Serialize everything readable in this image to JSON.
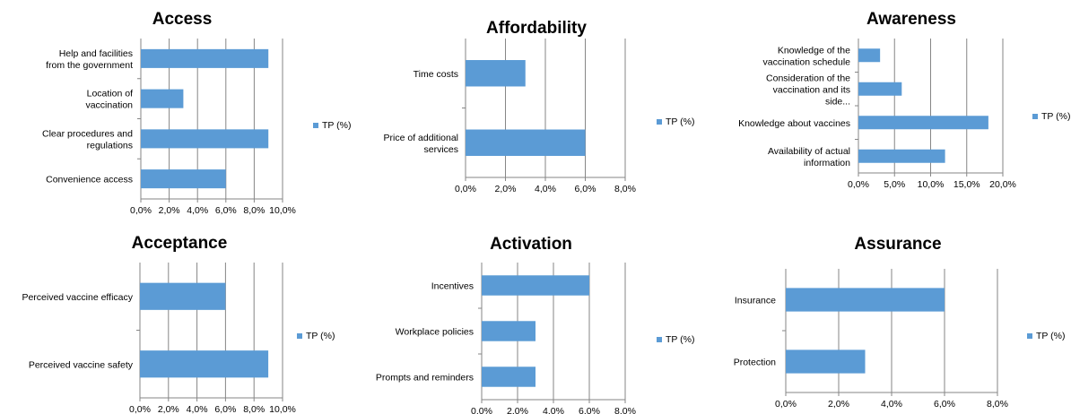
{
  "colors": {
    "bar": "#5b9bd5",
    "grid": "#868686",
    "axis": "#868686"
  },
  "chart_data": [
    {
      "type": "bar",
      "orientation": "horizontal",
      "title": "Access",
      "categories": [
        "Help and facilities from the government",
        "Location of vaccination",
        "Clear procedures and regulations",
        "Convenience access"
      ],
      "series": [
        {
          "name": "TP (%)",
          "values": [
            9.0,
            3.0,
            9.0,
            6.0
          ]
        }
      ],
      "xlim": [
        0,
        10
      ],
      "x_ticks": [
        "0,0%",
        "2,0%",
        "4,0%",
        "6,0%",
        "8,0%",
        "10,0%"
      ],
      "grid": true,
      "legend": "right"
    },
    {
      "type": "bar",
      "orientation": "horizontal",
      "title": "Affordability",
      "categories": [
        "Time costs",
        "Price of additional services"
      ],
      "series": [
        {
          "name": "TP (%)",
          "values": [
            3.0,
            6.0
          ]
        }
      ],
      "xlim": [
        0,
        8
      ],
      "x_ticks": [
        "0,0%",
        "2,0%",
        "4,0%",
        "6,0%",
        "8,0%"
      ],
      "grid": true,
      "legend": "right"
    },
    {
      "type": "bar",
      "orientation": "horizontal",
      "title": "Awareness",
      "categories": [
        "Knowledge of the vaccination schedule",
        "Consideration of the vaccination and its side...",
        "Knowledge about vaccines",
        "Availability of actual information"
      ],
      "series": [
        {
          "name": "TP (%)",
          "values": [
            3.0,
            6.0,
            18.0,
            12.0
          ]
        }
      ],
      "xlim": [
        0,
        20
      ],
      "x_ticks": [
        "0,0%",
        "5,0%",
        "10,0%",
        "15,0%",
        "20,0%"
      ],
      "grid": true,
      "legend": "right"
    },
    {
      "type": "bar",
      "orientation": "horizontal",
      "title": "Acceptance",
      "categories": [
        "Perceived vaccine efficacy",
        "Perceived vaccine safety"
      ],
      "series": [
        {
          "name": "TP (%)",
          "values": [
            6.0,
            9.0
          ]
        }
      ],
      "xlim": [
        0,
        10
      ],
      "x_ticks": [
        "0,0%",
        "2,0%",
        "4,0%",
        "6,0%",
        "8,0%",
        "10,0%"
      ],
      "grid": true,
      "legend": "right"
    },
    {
      "type": "bar",
      "orientation": "horizontal",
      "title": "Activation",
      "categories": [
        "Incentives",
        "Workplace policies",
        "Prompts and reminders"
      ],
      "series": [
        {
          "name": "TP (%)",
          "values": [
            6.0,
            3.0,
            3.0
          ]
        }
      ],
      "xlim": [
        0,
        8
      ],
      "x_ticks": [
        "0.0%",
        "2.0%",
        "4.0%",
        "6.0%",
        "8.0%"
      ],
      "grid": true,
      "legend": "right"
    },
    {
      "type": "bar",
      "orientation": "horizontal",
      "title": "Assurance",
      "categories": [
        "Insurance",
        "Protection"
      ],
      "series": [
        {
          "name": "TP (%)",
          "values": [
            6.0,
            3.0
          ]
        }
      ],
      "xlim": [
        0,
        8
      ],
      "x_ticks": [
        "0,0%",
        "2,0%",
        "4,0%",
        "6,0%",
        "8,0%"
      ],
      "grid": true,
      "legend": "right"
    }
  ]
}
